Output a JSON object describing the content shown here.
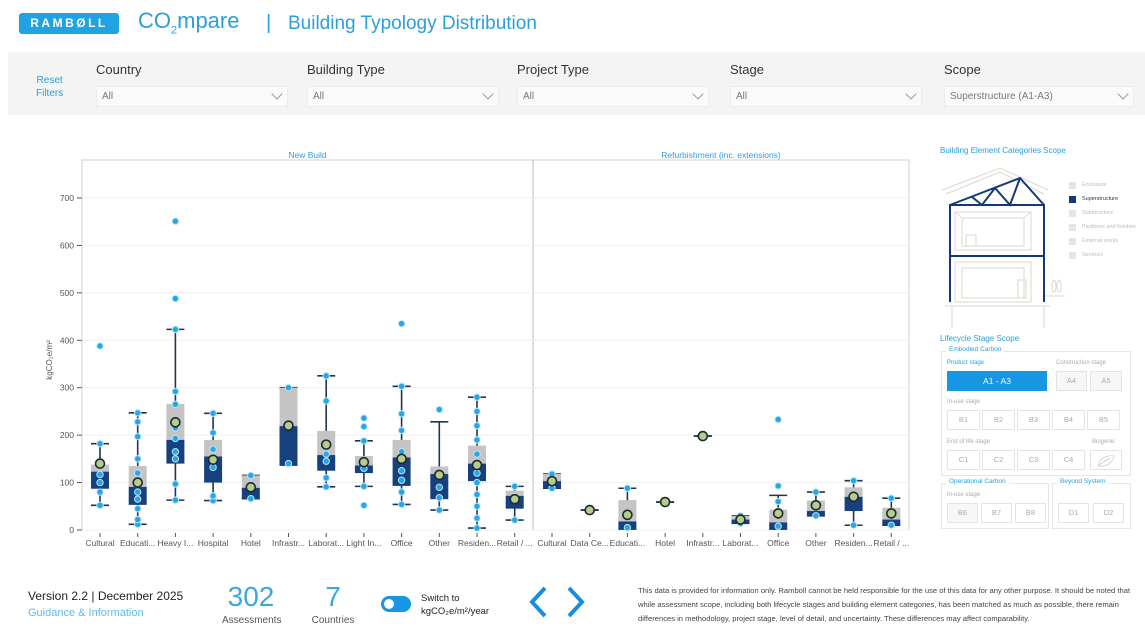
{
  "header": {
    "logo": "RAMBØLL",
    "app_name_prefix": "CO",
    "app_name_sub": "2",
    "app_name_suffix": "mpare",
    "separator": "|",
    "page_title": "Building Typology Distribution"
  },
  "filters": {
    "reset_label_line1": "Reset",
    "reset_label_line2": "Filters",
    "items": [
      {
        "label": "Country",
        "value": "All"
      },
      {
        "label": "Building Type",
        "value": "All"
      },
      {
        "label": "Project Type",
        "value": "All"
      },
      {
        "label": "Stage",
        "value": "All"
      },
      {
        "label": "Scope",
        "value": "Superstructure (A1-A3)"
      }
    ]
  },
  "colors": {
    "accent": "#1fa3e3",
    "box_lower": "#17407f",
    "box_upper": "#c4c4c4",
    "whisker": "#1f3550",
    "point": "#27a6e6",
    "mean": "#b5cc8e"
  },
  "chart_data": {
    "type": "boxplot",
    "ylabel": "kgCO₂e/m²",
    "ylim": [
      0,
      780
    ],
    "yticks": [
      0,
      100,
      200,
      300,
      400,
      500,
      600,
      700
    ],
    "grid": true,
    "panels": [
      {
        "title": "New Build",
        "categories": [
          {
            "label": "Cultural",
            "min": 52,
            "q1": 87,
            "median": 123,
            "q3": 138,
            "max": 182,
            "mean": 140,
            "points": [
              52,
              80,
              100,
              117,
              182,
              388
            ]
          },
          {
            "label": "Educati...",
            "min": 12,
            "q1": 53,
            "median": 91,
            "q3": 135,
            "max": 247,
            "mean": 100,
            "points": [
              12,
              22,
              45,
              65,
              80,
              120,
              150,
              197,
              228,
              247
            ]
          },
          {
            "label": "Heavy I...",
            "min": 63,
            "q1": 140,
            "median": 190,
            "q3": 266,
            "max": 423,
            "mean": 227,
            "points": [
              63,
              97,
              150,
              165,
              193,
              215,
              265,
              292,
              423,
              488,
              651
            ]
          },
          {
            "label": "Hospital",
            "min": 62,
            "q1": 100,
            "median": 155,
            "q3": 190,
            "max": 246,
            "mean": 148,
            "points": [
              62,
              72,
              132,
              170,
              205,
              246
            ]
          },
          {
            "label": "Hotel",
            "min": 66,
            "q1": 66,
            "median": 89,
            "q3": 115,
            "max": 115,
            "mean": 90,
            "points": [
              66,
              115
            ]
          },
          {
            "label": "Infrastr...",
            "min": 137,
            "q1": 137,
            "median": 219,
            "q3": 300,
            "max": 300,
            "mean": 220,
            "points": [
              140,
              300
            ]
          },
          {
            "label": "Laborat...",
            "min": 91,
            "q1": 125,
            "median": 158,
            "q3": 209,
            "max": 325,
            "mean": 180,
            "points": [
              91,
              110,
              145,
              160,
              272,
              325
            ]
          },
          {
            "label": "Light In...",
            "min": 92,
            "q1": 120,
            "median": 136,
            "q3": 156,
            "max": 188,
            "mean": 143,
            "points": [
              52,
              92,
              130,
              188,
              218,
              236
            ]
          },
          {
            "label": "Office",
            "min": 54,
            "q1": 93,
            "median": 153,
            "q3": 190,
            "max": 303,
            "mean": 150,
            "points": [
              54,
              80,
              105,
              125,
              165,
              210,
              245,
              303,
              435
            ]
          },
          {
            "label": "Other",
            "min": 42,
            "q1": 65,
            "median": 118,
            "q3": 134,
            "max": 228,
            "mean": 116,
            "points": [
              42,
              68,
              90,
              254
            ]
          },
          {
            "label": "Residen...",
            "min": 4,
            "q1": 103,
            "median": 140,
            "q3": 178,
            "max": 280,
            "mean": 137,
            "points": [
              4,
              25,
              50,
              75,
              100,
              120,
              160,
              190,
              220,
              250,
              280
            ]
          },
          {
            "label": "Retail / ...",
            "min": 21,
            "q1": 45,
            "median": 72,
            "q3": 83,
            "max": 92,
            "mean": 65,
            "points": [
              21,
              70,
              92
            ]
          }
        ]
      },
      {
        "title": "Refurbishment (inc. extensions)",
        "categories": [
          {
            "label": "Cultural",
            "min": 88,
            "q1": 88,
            "median": 103,
            "q3": 118,
            "max": 118,
            "mean": 103,
            "points": [
              88,
              118
            ]
          },
          {
            "label": "Data Ce...",
            "min": 42,
            "q1": 42,
            "median": 42,
            "q3": 42,
            "max": 42,
            "mean": 42,
            "points": []
          },
          {
            "label": "Educati...",
            "min": 2,
            "q1": 2,
            "median": 18,
            "q3": 63,
            "max": 88,
            "mean": 32,
            "points": [
              5,
              88
            ]
          },
          {
            "label": "Hotel",
            "min": 59,
            "q1": 59,
            "median": 59,
            "q3": 59,
            "max": 59,
            "mean": 59,
            "points": []
          },
          {
            "label": "Infrastr...",
            "min": 198,
            "q1": 198,
            "median": 198,
            "q3": 198,
            "max": 198,
            "mean": 198,
            "points": []
          },
          {
            "label": "Laborat...",
            "min": 14,
            "q1": 14,
            "median": 22,
            "q3": 30,
            "max": 30,
            "mean": 22,
            "points": [
              14,
              30
            ]
          },
          {
            "label": "Office",
            "min": 2,
            "q1": 2,
            "median": 16,
            "q3": 43,
            "max": 73,
            "mean": 35,
            "points": [
              8,
              40,
              60,
              93,
              233
            ]
          },
          {
            "label": "Other",
            "min": 30,
            "q1": 30,
            "median": 40,
            "q3": 62,
            "max": 80,
            "mean": 52,
            "points": [
              30,
              80
            ]
          },
          {
            "label": "Residen...",
            "min": 10,
            "q1": 40,
            "median": 70,
            "q3": 90,
            "max": 104,
            "mean": 70,
            "points": [
              10,
              104
            ]
          },
          {
            "label": "Retail / ...",
            "min": 10,
            "q1": 10,
            "median": 22,
            "q3": 47,
            "max": 67,
            "mean": 35,
            "points": [
              10,
              67
            ]
          }
        ]
      }
    ]
  },
  "element_scope": {
    "title": "Building Element Categories Scope",
    "legend": [
      {
        "label": "Enclosure",
        "active": false
      },
      {
        "label": "Superstructure",
        "active": true
      },
      {
        "label": "Substructure",
        "active": false
      },
      {
        "label": "Partitions and finishes",
        "active": false
      },
      {
        "label": "External works",
        "active": false
      },
      {
        "label": "Services",
        "active": false
      }
    ]
  },
  "lifecycle": {
    "title": "Lifecycle Stage Scope",
    "embodied_label": "Embodied Carbon",
    "product_stage": "Product stage",
    "construction_stage": "Construction stage",
    "inuse_stage": "In-use stage",
    "eol_stage": "End of life stage",
    "biogenic": "Biogenic",
    "operational_label": "Operational Carbon",
    "op_inuse_stage": "In-use stage",
    "beyond_label": "Beyond System",
    "a13": "A1  - A3",
    "a4": "A4",
    "a5": "A5",
    "b1": "B1",
    "b2": "B2",
    "b3": "B3",
    "b4": "B4",
    "b5": "B5",
    "c1": "C1",
    "c2": "C2",
    "c3": "C3",
    "c4": "C4",
    "b6": "B6",
    "b7": "B7",
    "b8": "B8",
    "d1": "D1",
    "d2": "D2"
  },
  "footer": {
    "version": "Version 2.2 | December 2025",
    "guidance": "Guidance & Information",
    "assessments_value": "302",
    "assessments_label": "Assessments",
    "countries_value": "7",
    "countries_label": "Countries",
    "toggle_line1": "Switch to",
    "toggle_line2": "kgCO₂e/m²/year",
    "toggle_on": true,
    "disclaimer": "This data is provided for information only. Ramboll cannot be held responsible for the use of this data for any other purpose. It should be noted that while assessment scope, including both lifecycle stages and building element categories, has been matched as much as possible, there remain differences in methodology, project stage, level of detail, and uncertainty. These differences may affect comparability."
  }
}
